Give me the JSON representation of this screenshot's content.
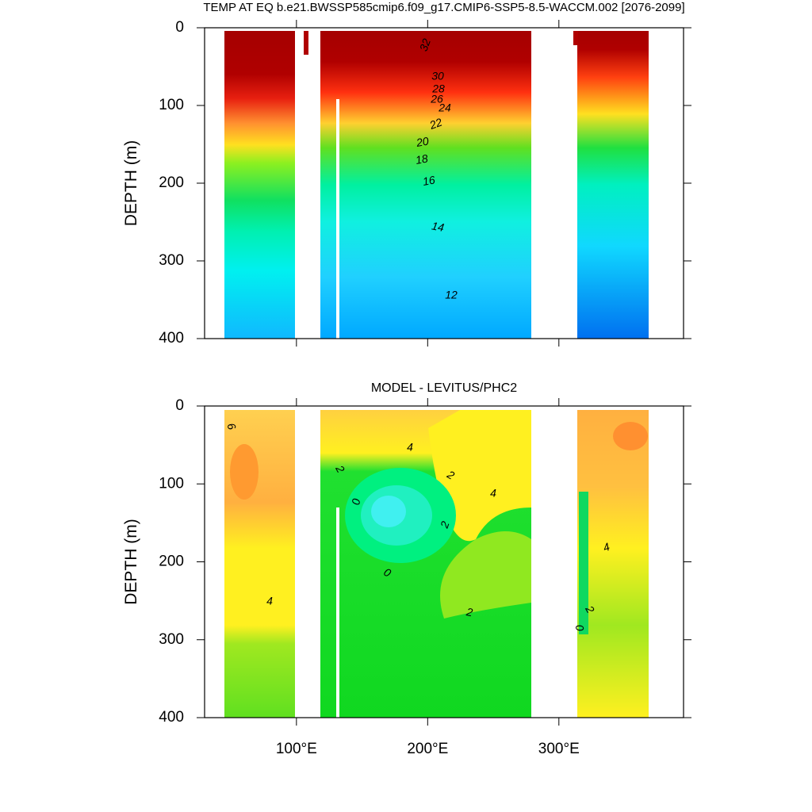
{
  "chart_data": [
    {
      "type": "contour",
      "title": "TEMP AT EQ b.e21.BWSSP585cmip6.f09_g17.CMIP6-SSP5-8.5-WACCM.002 [2076-2099]",
      "ylabel": "DEPTH (m)",
      "xlim": [
        30,
        395
      ],
      "xticks": [
        100,
        200,
        300
      ],
      "ylim": [
        0,
        400
      ],
      "y_inverted": true,
      "yticks": [
        0,
        100,
        200,
        300,
        400
      ],
      "contour_labels": [
        32,
        30,
        28,
        26,
        24,
        22,
        20,
        18,
        16,
        14,
        12
      ]
    },
    {
      "type": "contour",
      "title": "MODEL - LEVITUS/PHC2",
      "ylabel": "DEPTH (m)",
      "xlim": [
        30,
        395
      ],
      "xticks": [
        {
          "value": 100,
          "label": "100°E"
        },
        {
          "value": 200,
          "label": "200°E"
        },
        {
          "value": 300,
          "label": "300°E"
        }
      ],
      "ylim": [
        0,
        400
      ],
      "y_inverted": true,
      "yticks": [
        0,
        100,
        200,
        300,
        400
      ],
      "contour_labels": [
        6,
        4,
        2,
        2,
        4,
        0,
        2,
        0,
        4,
        4,
        2,
        2,
        0
      ]
    }
  ]
}
